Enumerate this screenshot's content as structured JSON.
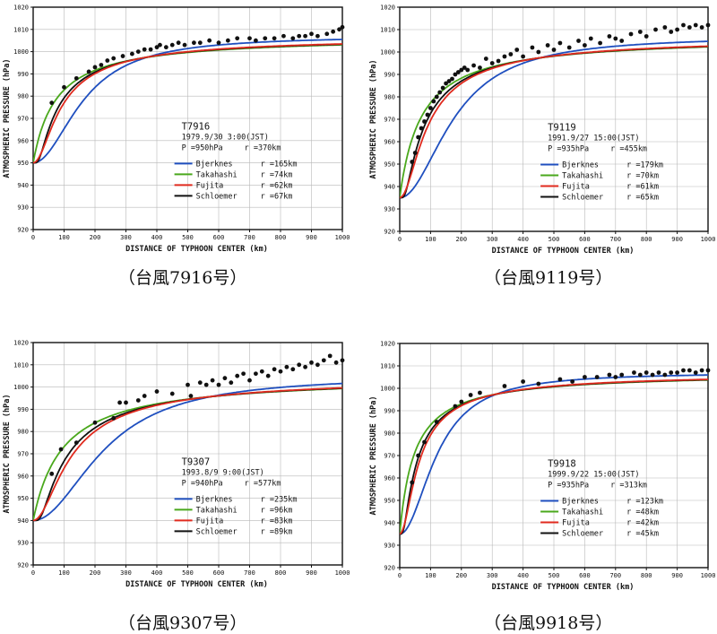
{
  "colors": {
    "bjerknes": "#1f4fbf",
    "takahashi": "#4aa81c",
    "fujita": "#e02a1e",
    "schloemer": "#111111",
    "points": "#111111",
    "grid": "#b8b8b8"
  },
  "chart_data": [
    {
      "type": "line",
      "id": "T7916",
      "title": "T7916",
      "date": "1979.9/30 3:00(JST)",
      "pc_label": "P =950hPa",
      "rmax_label": "r =370km",
      "caption": "（台風7916号）",
      "xlabel": "DISTANCE OF TYPHOON CENTER   (km)",
      "ylabel": "ATMOSPHERIC PRESSURE   (hPa)",
      "xlim": [
        0,
        1000
      ],
      "ylim": [
        920,
        1020
      ],
      "x_ticks": [
        0,
        100,
        200,
        300,
        400,
        500,
        600,
        700,
        800,
        900,
        1000
      ],
      "y_ticks": [
        920,
        930,
        940,
        950,
        960,
        970,
        980,
        990,
        1000,
        1010,
        1020
      ],
      "grid": true,
      "pc": 950,
      "pinf": 1007,
      "series": [
        {
          "name": "Bjerknes",
          "r_label": "r =165km",
          "r": 165
        },
        {
          "name": "Takahashi",
          "r_label": "r =74km",
          "r": 74
        },
        {
          "name": "Fujita",
          "r_label": "r =62km",
          "r": 62
        },
        {
          "name": "Schloemer",
          "r_label": "r =67km",
          "r": 67
        }
      ],
      "points": [
        [
          60,
          977
        ],
        [
          100,
          984
        ],
        [
          140,
          988
        ],
        [
          180,
          991
        ],
        [
          200,
          993
        ],
        [
          220,
          994
        ],
        [
          240,
          996
        ],
        [
          260,
          997
        ],
        [
          290,
          998
        ],
        [
          320,
          999
        ],
        [
          340,
          1000
        ],
        [
          360,
          1001
        ],
        [
          380,
          1001
        ],
        [
          400,
          1002
        ],
        [
          410,
          1003
        ],
        [
          430,
          1002
        ],
        [
          450,
          1003
        ],
        [
          470,
          1004
        ],
        [
          490,
          1003
        ],
        [
          520,
          1004
        ],
        [
          540,
          1004
        ],
        [
          570,
          1005
        ],
        [
          600,
          1004
        ],
        [
          630,
          1005
        ],
        [
          660,
          1006
        ],
        [
          700,
          1006
        ],
        [
          720,
          1005
        ],
        [
          750,
          1006
        ],
        [
          780,
          1006
        ],
        [
          810,
          1007
        ],
        [
          840,
          1006
        ],
        [
          860,
          1007
        ],
        [
          880,
          1007
        ],
        [
          900,
          1008
        ],
        [
          920,
          1007
        ],
        [
          950,
          1008
        ],
        [
          970,
          1009
        ],
        [
          990,
          1010
        ],
        [
          1000,
          1011
        ]
      ]
    },
    {
      "type": "line",
      "id": "T9119",
      "title": "T9119",
      "date": "1991.9/27 15:00(JST)",
      "pc_label": "P =935hPa",
      "rmax_label": "r =455km",
      "caption": "（台風9119号）",
      "xlabel": "DISTANCE OF TYPHOON CENTER   (km)",
      "ylabel": "ATMOSPHERIC PRESSURE   (hPa)",
      "xlim": [
        0,
        1000
      ],
      "ylim": [
        920,
        1020
      ],
      "x_ticks": [
        0,
        100,
        200,
        300,
        400,
        500,
        600,
        700,
        800,
        900,
        1000
      ],
      "y_ticks": [
        920,
        930,
        940,
        950,
        960,
        970,
        980,
        990,
        1000,
        1010,
        1020
      ],
      "grid": true,
      "pc": 935,
      "pinf": 1007,
      "series": [
        {
          "name": "Bjerknes",
          "r_label": "r =179km",
          "r": 179
        },
        {
          "name": "Takahashi",
          "r_label": "r =70km",
          "r": 70
        },
        {
          "name": "Fujita",
          "r_label": "r =61km",
          "r": 61
        },
        {
          "name": "Schloemer",
          "r_label": "r =65km",
          "r": 65
        }
      ],
      "points": [
        [
          40,
          951
        ],
        [
          50,
          955
        ],
        [
          60,
          962
        ],
        [
          70,
          966
        ],
        [
          80,
          969
        ],
        [
          90,
          972
        ],
        [
          100,
          975
        ],
        [
          110,
          978
        ],
        [
          120,
          980
        ],
        [
          130,
          982
        ],
        [
          140,
          984
        ],
        [
          150,
          986
        ],
        [
          160,
          987
        ],
        [
          170,
          988
        ],
        [
          180,
          990
        ],
        [
          190,
          991
        ],
        [
          200,
          992
        ],
        [
          210,
          993
        ],
        [
          220,
          992
        ],
        [
          240,
          994
        ],
        [
          260,
          993
        ],
        [
          280,
          997
        ],
        [
          300,
          995
        ],
        [
          320,
          996
        ],
        [
          340,
          998
        ],
        [
          360,
          999
        ],
        [
          380,
          1001
        ],
        [
          400,
          998
        ],
        [
          430,
          1002
        ],
        [
          450,
          1000
        ],
        [
          480,
          1003
        ],
        [
          500,
          1001
        ],
        [
          520,
          1004
        ],
        [
          550,
          1002
        ],
        [
          580,
          1005
        ],
        [
          600,
          1003
        ],
        [
          620,
          1006
        ],
        [
          650,
          1004
        ],
        [
          680,
          1007
        ],
        [
          700,
          1006
        ],
        [
          720,
          1005
        ],
        [
          750,
          1008
        ],
        [
          780,
          1009
        ],
        [
          800,
          1007
        ],
        [
          830,
          1010
        ],
        [
          860,
          1011
        ],
        [
          880,
          1009
        ],
        [
          900,
          1010
        ],
        [
          920,
          1012
        ],
        [
          940,
          1011
        ],
        [
          960,
          1012
        ],
        [
          980,
          1011
        ],
        [
          1000,
          1012
        ]
      ]
    },
    {
      "type": "line",
      "id": "T9307",
      "title": "T9307",
      "date": "1993.8/9 9:00(JST)",
      "pc_label": "P =940hPa",
      "rmax_label": "r =577km",
      "caption": "（台風9307号）",
      "xlabel": "DISTANCE OF TYPHOON CENTER   (km)",
      "ylabel": "ATMOSPHERIC PRESSURE   (hPa)",
      "xlim": [
        0,
        1000
      ],
      "ylim": [
        920,
        1020
      ],
      "x_ticks": [
        0,
        100,
        200,
        300,
        400,
        500,
        600,
        700,
        800,
        900,
        1000
      ],
      "y_ticks": [
        920,
        930,
        940,
        950,
        960,
        970,
        980,
        990,
        1000,
        1010,
        1020
      ],
      "grid": true,
      "pc": 940,
      "pinf": 1005,
      "series": [
        {
          "name": "Bjerknes",
          "r_label": "r =235km",
          "r": 235
        },
        {
          "name": "Takahashi",
          "r_label": "r =96km",
          "r": 96
        },
        {
          "name": "Fujita",
          "r_label": "r =83km",
          "r": 83
        },
        {
          "name": "Schloemer",
          "r_label": "r =89km",
          "r": 89
        }
      ],
      "points": [
        [
          60,
          961
        ],
        [
          90,
          972
        ],
        [
          140,
          975
        ],
        [
          200,
          984
        ],
        [
          260,
          986
        ],
        [
          280,
          993
        ],
        [
          300,
          993
        ],
        [
          340,
          994
        ],
        [
          360,
          996
        ],
        [
          400,
          998
        ],
        [
          450,
          997
        ],
        [
          500,
          1001
        ],
        [
          510,
          996
        ],
        [
          540,
          1002
        ],
        [
          560,
          1001
        ],
        [
          580,
          1003
        ],
        [
          600,
          1001
        ],
        [
          620,
          1004
        ],
        [
          640,
          1002
        ],
        [
          660,
          1005
        ],
        [
          680,
          1006
        ],
        [
          700,
          1003
        ],
        [
          720,
          1006
        ],
        [
          740,
          1007
        ],
        [
          760,
          1005
        ],
        [
          780,
          1008
        ],
        [
          800,
          1007
        ],
        [
          820,
          1009
        ],
        [
          840,
          1008
        ],
        [
          860,
          1010
        ],
        [
          880,
          1009
        ],
        [
          900,
          1011
        ],
        [
          920,
          1010
        ],
        [
          940,
          1012
        ],
        [
          960,
          1014
        ],
        [
          980,
          1011
        ],
        [
          1000,
          1012
        ]
      ]
    },
    {
      "type": "line",
      "id": "T9918",
      "title": "T9918",
      "date": "1999.9/22 15:00(JST)",
      "pc_label": "P =935hPa",
      "rmax_label": "r =313km",
      "caption": "（台風9918号）",
      "xlabel": "DISTANCE OF TYPHOON CENTER   (km)",
      "ylabel": "ATMOSPHERIC PRESSURE   (hPa)",
      "xlim": [
        0,
        1000
      ],
      "ylim": [
        920,
        1020
      ],
      "x_ticks": [
        0,
        100,
        200,
        300,
        400,
        500,
        600,
        700,
        800,
        900,
        1000
      ],
      "y_ticks": [
        920,
        930,
        940,
        950,
        960,
        970,
        980,
        990,
        1000,
        1010,
        1020
      ],
      "grid": true,
      "pc": 935,
      "pinf": 1007,
      "series": [
        {
          "name": "Bjerknes",
          "r_label": "r =123km",
          "r": 123
        },
        {
          "name": "Takahashi",
          "r_label": "r =48km",
          "r": 48
        },
        {
          "name": "Fujita",
          "r_label": "r =42km",
          "r": 42
        },
        {
          "name": "Schloemer",
          "r_label": "r =45km",
          "r": 45
        }
      ],
      "points": [
        [
          40,
          958
        ],
        [
          60,
          970
        ],
        [
          80,
          976
        ],
        [
          120,
          985
        ],
        [
          180,
          992
        ],
        [
          200,
          994
        ],
        [
          230,
          997
        ],
        [
          260,
          998
        ],
        [
          340,
          1001
        ],
        [
          400,
          1003
        ],
        [
          450,
          1002
        ],
        [
          520,
          1004
        ],
        [
          560,
          1003
        ],
        [
          600,
          1005
        ],
        [
          640,
          1005
        ],
        [
          680,
          1006
        ],
        [
          700,
          1005
        ],
        [
          720,
          1006
        ],
        [
          760,
          1007
        ],
        [
          780,
          1006
        ],
        [
          800,
          1007
        ],
        [
          820,
          1006
        ],
        [
          840,
          1007
        ],
        [
          860,
          1006
        ],
        [
          880,
          1007
        ],
        [
          900,
          1007
        ],
        [
          920,
          1008
        ],
        [
          940,
          1008
        ],
        [
          960,
          1007
        ],
        [
          980,
          1008
        ],
        [
          1000,
          1008
        ]
      ]
    }
  ]
}
